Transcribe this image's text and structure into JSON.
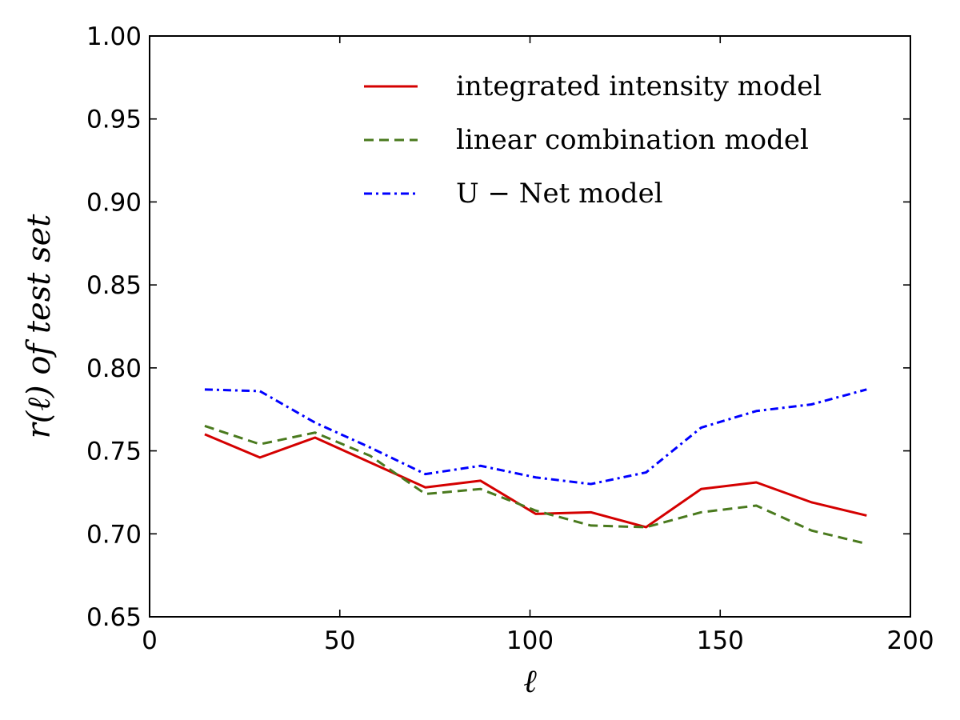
{
  "chart_data": {
    "type": "line",
    "xlabel": "ℓ",
    "ylabel": "r(ℓ)  of  test  set",
    "xlim": [
      0,
      200
    ],
    "ylim": [
      0.65,
      1.0
    ],
    "xticks": [
      "0",
      "50",
      "100",
      "150",
      "200"
    ],
    "yticks": [
      "0.65",
      "0.70",
      "0.75",
      "0.80",
      "0.85",
      "0.90",
      "0.95",
      "1.00"
    ],
    "grid": false,
    "legend_position": "top-right",
    "x": [
      14.5,
      29,
      43.5,
      58,
      72.5,
      87,
      101.5,
      116,
      130.5,
      145,
      159.5,
      174,
      188.5
    ],
    "series": [
      {
        "name": "integrated intensity model",
        "color": "#d40000",
        "style": "solid",
        "values": [
          0.76,
          0.746,
          0.758,
          0.743,
          0.728,
          0.732,
          0.712,
          0.713,
          0.704,
          0.727,
          0.731,
          0.719,
          0.711
        ]
      },
      {
        "name": "linear combination model",
        "color": "#4a7a1e",
        "style": "dashed",
        "values": [
          0.765,
          0.754,
          0.761,
          0.747,
          0.724,
          0.727,
          0.714,
          0.705,
          0.704,
          0.713,
          0.717,
          0.702,
          0.694
        ]
      },
      {
        "name": "U − Net model",
        "color": "#0000ff",
        "style": "dashdot",
        "values": [
          0.787,
          0.786,
          0.767,
          0.752,
          0.736,
          0.741,
          0.734,
          0.73,
          0.737,
          0.764,
          0.774,
          0.778,
          0.787
        ]
      }
    ]
  }
}
